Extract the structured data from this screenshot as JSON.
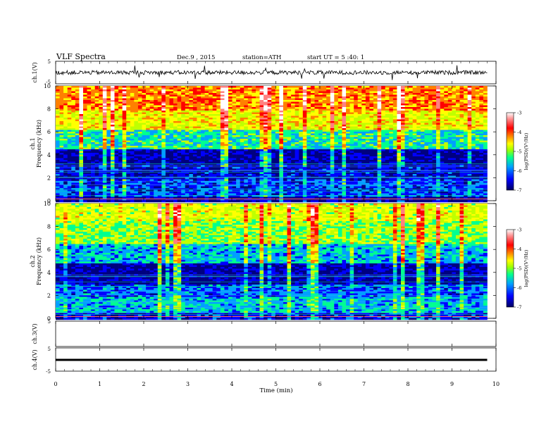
{
  "header": {
    "title": "VLF  Spectra",
    "date": "Dec.9  , 2015",
    "station": "station=ATH",
    "start": "start  UT  =   5  :40:  1"
  },
  "chart_data": [
    {
      "type": "line",
      "panel": "ch1-waveform",
      "ylabel": "ch.1(V)",
      "ylim": [
        -5,
        5
      ],
      "yticks": [
        "5",
        "-5"
      ],
      "series": [
        {
          "x_range_min": [
            0,
            9.8
          ],
          "y_baseline": 0.0,
          "y_typical_range": [
            -1.5,
            1.5
          ]
        }
      ]
    },
    {
      "type": "heatmap",
      "panel": "ch1-spectrogram",
      "ylabel_outer": "ch.1",
      "ylabel": "Frequency  (kHz)",
      "ylim": [
        0,
        10
      ],
      "yticks": [
        "0",
        "2",
        "4",
        "6",
        "8",
        "10"
      ],
      "xlim_min": [
        0,
        9.8
      ],
      "colorbar": {
        "label": "log(PSD)(V²/Hz)",
        "range": [
          -7,
          -3
        ],
        "ticks": [
          "-3",
          "-4",
          "-5",
          "-6",
          "-7"
        ]
      },
      "bands": [
        {
          "from_khz": 0,
          "to_khz": 0.4,
          "level": -6.8
        },
        {
          "from_khz": 0.4,
          "to_khz": 2.0,
          "level": -6.3
        },
        {
          "from_khz": 2.0,
          "to_khz": 3.2,
          "level": -6.6
        },
        {
          "from_khz": 3.2,
          "to_khz": 4.6,
          "level": -6.7
        },
        {
          "from_khz": 4.6,
          "to_khz": 6.2,
          "level": -5.7
        },
        {
          "from_khz": 6.2,
          "to_khz": 8.0,
          "level": -4.9
        },
        {
          "from_khz": 8.0,
          "to_khz": 10.0,
          "level": -4.4
        }
      ],
      "colors": [
        "#000080",
        "#0000ff",
        "#00a0ff",
        "#00ff90",
        "#c0ff00",
        "#ffff00",
        "#ff8000",
        "#ff0000",
        "#ff8080",
        "#ffffff"
      ]
    },
    {
      "type": "heatmap",
      "panel": "ch2-spectrogram",
      "ylabel_outer": "ch.2",
      "ylabel": "Frequency  (kHz)",
      "ylim": [
        0,
        10
      ],
      "yticks": [
        "0",
        "2",
        "4",
        "6",
        "8",
        "10"
      ],
      "xlim_min": [
        0,
        9.8
      ],
      "colorbar": {
        "label": "log(PSD)(V²/Hz)",
        "range": [
          -7,
          -3
        ],
        "ticks": [
          "-3",
          "-4",
          "-5",
          "-6",
          "-7"
        ]
      },
      "bands": [
        {
          "from_khz": 0,
          "to_khz": 0.5,
          "level": -6.5
        },
        {
          "from_khz": 0.5,
          "to_khz": 2.0,
          "level": -5.9
        },
        {
          "from_khz": 2.0,
          "to_khz": 3.0,
          "level": -6.2
        },
        {
          "from_khz": 3.0,
          "to_khz": 4.8,
          "level": -6.7
        },
        {
          "from_khz": 4.8,
          "to_khz": 6.5,
          "level": -5.9
        },
        {
          "from_khz": 6.5,
          "to_khz": 8.5,
          "level": -5.3
        },
        {
          "from_khz": 8.5,
          "to_khz": 10.0,
          "level": -5.0
        }
      ],
      "colors": [
        "#000080",
        "#0000ff",
        "#00a0ff",
        "#00ff90",
        "#c0ff00",
        "#ffff00",
        "#ff8000",
        "#ff0000",
        "#ff8080",
        "#ffffff"
      ]
    },
    {
      "type": "line",
      "panel": "ch3-waveform",
      "ylabel": "ch.3(V)",
      "ylim": [
        -5,
        5
      ],
      "yticks": [
        "5"
      ],
      "series": []
    },
    {
      "type": "line",
      "panel": "ch4-waveform",
      "ylabel": "ch.4(V)",
      "ylim": [
        -5,
        5
      ],
      "yticks": [
        "5",
        "-5"
      ],
      "series": [
        {
          "x_range_min": [
            0,
            9.8
          ],
          "y_constant": 0.0
        }
      ]
    }
  ],
  "x_axis": {
    "label": "Time  (min)",
    "xlim": [
      0,
      10
    ],
    "ticks": [
      "0",
      "1",
      "2",
      "3",
      "4",
      "5",
      "6",
      "7",
      "8",
      "9",
      "10"
    ]
  }
}
